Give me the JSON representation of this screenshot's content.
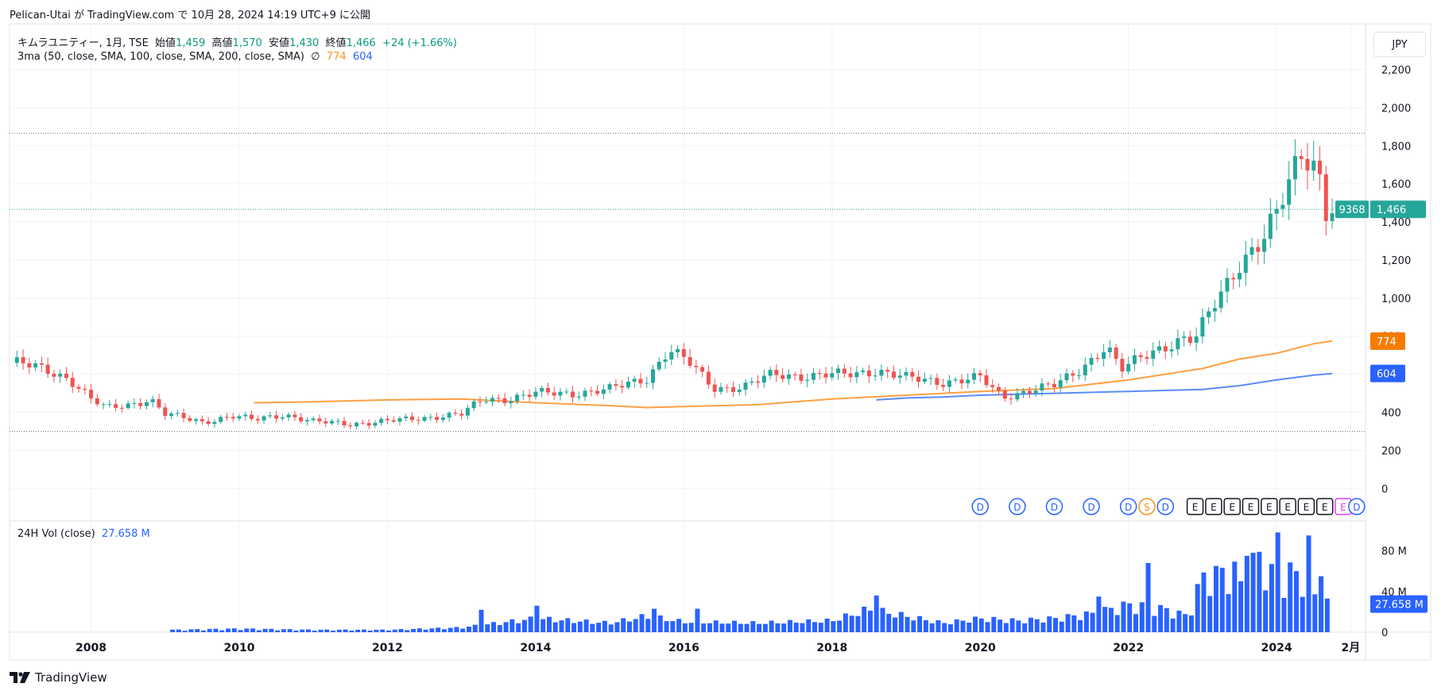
{
  "publish_note": "Pelican-Utai が TradingView.com で 10月 28, 2024 14:19 UTC+9 に公開",
  "header": {
    "symbol": "キムラユニティー, 1月, TSE",
    "open_label": "始値",
    "open": "1,459",
    "high_label": "高値",
    "high": "1,570",
    "low_label": "安値",
    "low": "1,430",
    "close_label": "終値",
    "close": "1,466",
    "change": "+24 (+1.66%)"
  },
  "indicator": {
    "label": "3ma (50, close, SMA, 100, close, SMA, 200, close, SMA)",
    "symbol": "∅",
    "ma100_value": "774",
    "ma200_value": "604"
  },
  "volume_legend": {
    "label": "24H Vol (close)",
    "value": "27.658 M"
  },
  "currency_button": "JPY",
  "price_tag": {
    "countdown": "9368",
    "price": "1,466"
  },
  "ma_tags": {
    "ma100": "774",
    "ma200": "604"
  },
  "vol_tag": "27.658 M",
  "footer_brand": "TradingView",
  "colors": {
    "up": "#26a69a",
    "down": "#ef5350",
    "ma100": "#ff9f43",
    "ma200": "#5b8bf7",
    "volume": "#2962ff",
    "grid": "#f0f3fa",
    "axis_text": "#131722"
  },
  "chart_data": {
    "type": "candlestick",
    "interval": "1M",
    "price_axis": {
      "ticks": [
        "0",
        "200",
        "400",
        "600",
        "800",
        "1,000",
        "1,200",
        "1,400",
        "1,600",
        "1,800",
        "2,000",
        "2,200"
      ],
      "range": [
        -170,
        2440
      ]
    },
    "volume_axis": {
      "ticks": [
        "0",
        "40 M",
        "80 M"
      ],
      "range": [
        0,
        100
      ]
    },
    "x_axis": {
      "labels": [
        "2008",
        "2010",
        "2012",
        "2014",
        "2016",
        "2018",
        "2020",
        "2022",
        "2024",
        "2月"
      ],
      "range": [
        2006.9,
        2025.2
      ]
    },
    "reference_lines": [
      1866,
      300
    ],
    "last_price": 1466,
    "events": [
      {
        "t": 2020.0,
        "label": "D",
        "type": "dividend"
      },
      {
        "t": 2020.5,
        "label": "D",
        "type": "dividend"
      },
      {
        "t": 2021.0,
        "label": "D",
        "type": "dividend"
      },
      {
        "t": 2021.5,
        "label": "D",
        "type": "dividend"
      },
      {
        "t": 2022.0,
        "label": "D",
        "type": "dividend"
      },
      {
        "t": 2022.25,
        "label": "S",
        "type": "split"
      },
      {
        "t": 2022.5,
        "label": "D",
        "type": "dividend"
      },
      {
        "t": 2022.9,
        "label": "E",
        "type": "earnings"
      },
      {
        "t": 2023.15,
        "label": "E",
        "type": "earnings"
      },
      {
        "t": 2023.4,
        "label": "E",
        "type": "earnings"
      },
      {
        "t": 2023.65,
        "label": "E",
        "type": "earnings"
      },
      {
        "t": 2023.9,
        "label": "E",
        "type": "earnings"
      },
      {
        "t": 2024.15,
        "label": "E",
        "type": "earnings"
      },
      {
        "t": 2024.4,
        "label": "E",
        "type": "earnings"
      },
      {
        "t": 2024.65,
        "label": "E",
        "type": "earnings"
      },
      {
        "t": 2024.9,
        "label": "E",
        "type": "earnings-upcoming"
      },
      {
        "t": 2025.08,
        "label": "D",
        "type": "dividend"
      }
    ],
    "price_anchors": [
      [
        2007.0,
        660
      ],
      [
        2007.4,
        620
      ],
      [
        2007.7,
        580
      ],
      [
        2008.0,
        470
      ],
      [
        2008.2,
        420
      ],
      [
        2008.5,
        440
      ],
      [
        2008.8,
        470
      ],
      [
        2009.0,
        390
      ],
      [
        2009.5,
        350
      ],
      [
        2009.9,
        380
      ],
      [
        2010.2,
        360
      ],
      [
        2010.6,
        390
      ],
      [
        2011.0,
        350
      ],
      [
        2011.5,
        340
      ],
      [
        2011.9,
        350
      ],
      [
        2012.2,
        360
      ],
      [
        2012.7,
        380
      ],
      [
        2013.0,
        390
      ],
      [
        2013.3,
        470
      ],
      [
        2013.6,
        470
      ],
      [
        2014.0,
        500
      ],
      [
        2014.5,
        500
      ],
      [
        2015.0,
        520
      ],
      [
        2015.5,
        580
      ],
      [
        2015.8,
        730
      ],
      [
        2016.1,
        650
      ],
      [
        2016.4,
        530
      ],
      [
        2016.8,
        530
      ],
      [
        2017.2,
        600
      ],
      [
        2017.7,
        590
      ],
      [
        2018.2,
        600
      ],
      [
        2018.6,
        620
      ],
      [
        2019.0,
        580
      ],
      [
        2019.5,
        560
      ],
      [
        2020.0,
        580
      ],
      [
        2020.3,
        480
      ],
      [
        2020.7,
        520
      ],
      [
        2021.0,
        540
      ],
      [
        2021.3,
        610
      ],
      [
        2021.7,
        750
      ],
      [
        2021.9,
        620
      ],
      [
        2022.3,
        720
      ],
      [
        2022.7,
        780
      ],
      [
        2022.9,
        780
      ],
      [
        2023.2,
        1000
      ],
      [
        2023.5,
        1190
      ],
      [
        2023.8,
        1290
      ],
      [
        2024.0,
        1430
      ],
      [
        2024.2,
        1650
      ],
      [
        2024.35,
        1790
      ],
      [
        2024.55,
        1700
      ],
      [
        2024.67,
        1440
      ],
      [
        2024.75,
        1466
      ]
    ],
    "ma100_series": [
      [
        2010.2,
        450
      ],
      [
        2011.0,
        455
      ],
      [
        2012.0,
        465
      ],
      [
        2013.0,
        470
      ],
      [
        2014.0,
        450
      ],
      [
        2015.0,
        435
      ],
      [
        2015.5,
        425
      ],
      [
        2016.0,
        430
      ],
      [
        2017.0,
        440
      ],
      [
        2018.0,
        470
      ],
      [
        2019.0,
        490
      ],
      [
        2020.0,
        510
      ],
      [
        2021.0,
        525
      ],
      [
        2022.0,
        570
      ],
      [
        2022.5,
        600
      ],
      [
        2023.0,
        630
      ],
      [
        2023.5,
        680
      ],
      [
        2024.0,
        710
      ],
      [
        2024.5,
        760
      ],
      [
        2024.75,
        774
      ]
    ],
    "ma200_series": [
      [
        2018.6,
        465
      ],
      [
        2019.0,
        475
      ],
      [
        2019.5,
        480
      ],
      [
        2020.0,
        490
      ],
      [
        2021.0,
        500
      ],
      [
        2022.0,
        510
      ],
      [
        2023.0,
        520
      ],
      [
        2023.5,
        540
      ],
      [
        2024.0,
        570
      ],
      [
        2024.5,
        595
      ],
      [
        2024.75,
        604
      ]
    ],
    "volume_anchors": [
      [
        2009.1,
        2
      ],
      [
        2010.0,
        3
      ],
      [
        2011.0,
        2
      ],
      [
        2012.0,
        2
      ],
      [
        2013.0,
        4
      ],
      [
        2013.5,
        8
      ],
      [
        2014.0,
        12
      ],
      [
        2015.0,
        8
      ],
      [
        2015.5,
        14
      ],
      [
        2016.0,
        9
      ],
      [
        2017.0,
        8
      ],
      [
        2018.0,
        10
      ],
      [
        2018.5,
        20
      ],
      [
        2019.0,
        14
      ],
      [
        2019.5,
        8
      ],
      [
        2020.0,
        12
      ],
      [
        2020.5,
        10
      ],
      [
        2021.0,
        12
      ],
      [
        2021.5,
        16
      ],
      [
        2022.0,
        24
      ],
      [
        2022.5,
        20
      ],
      [
        2022.8,
        14
      ],
      [
        2023.0,
        48
      ],
      [
        2023.5,
        55
      ],
      [
        2023.8,
        65
      ],
      [
        2024.0,
        45
      ],
      [
        2024.3,
        60
      ],
      [
        2024.5,
        30
      ],
      [
        2024.75,
        25
      ]
    ],
    "volume_spikes": [
      [
        2013.3,
        22
      ],
      [
        2014.0,
        26
      ],
      [
        2015.6,
        23
      ],
      [
        2016.2,
        23
      ],
      [
        2018.6,
        36
      ],
      [
        2018.8,
        18
      ],
      [
        2021.6,
        35
      ],
      [
        2022.25,
        68
      ],
      [
        2023.5,
        50
      ],
      [
        2023.6,
        75
      ],
      [
        2023.9,
        67
      ],
      [
        2024.0,
        98
      ],
      [
        2024.3,
        60
      ],
      [
        2024.4,
        95
      ],
      [
        2024.6,
        55
      ]
    ]
  }
}
